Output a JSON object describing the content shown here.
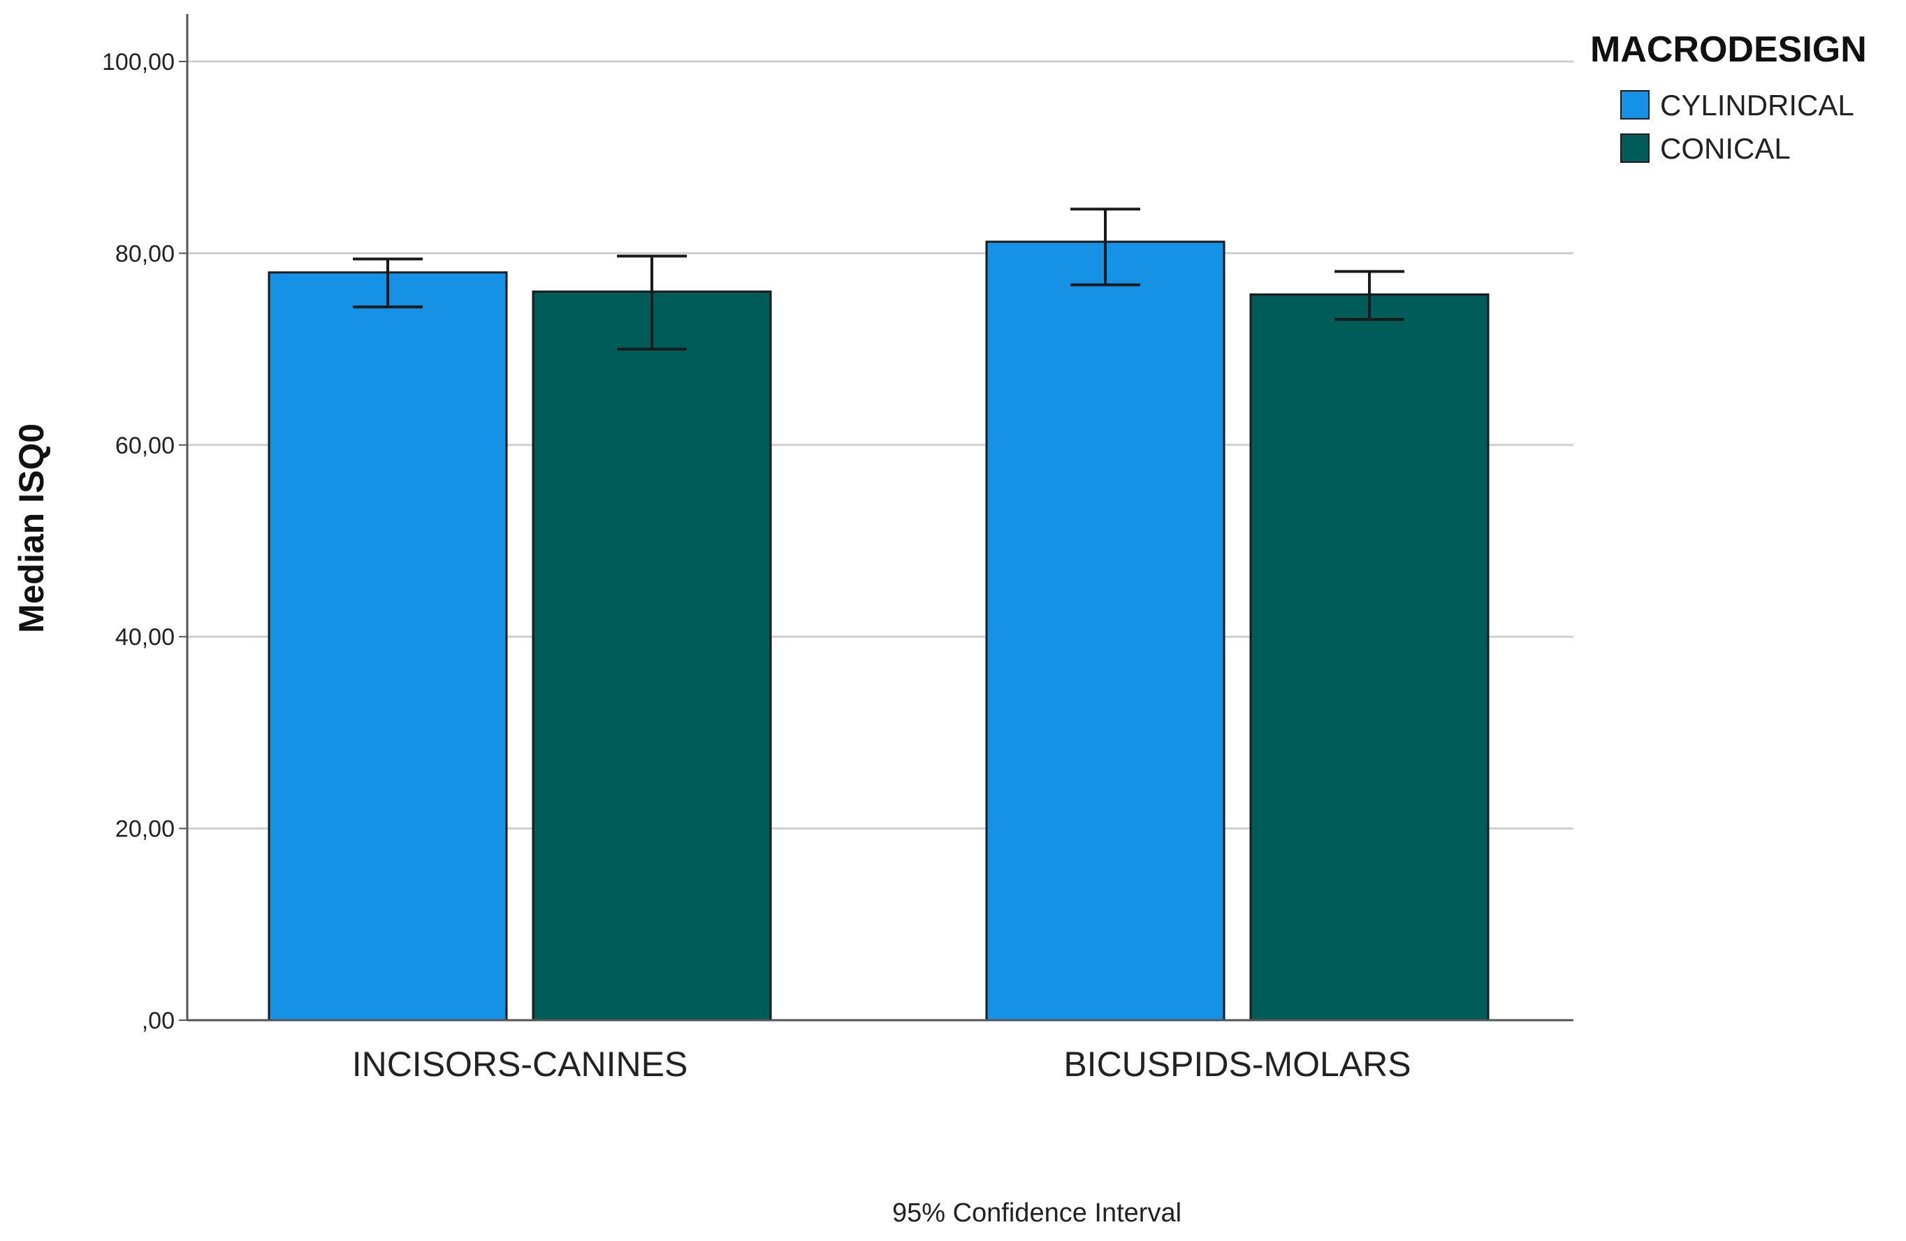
{
  "chart_data": {
    "type": "bar",
    "categories": [
      "INCISORS-CANINES",
      "BICUSPIDS-MOLARS"
    ],
    "series": [
      {
        "name": "CYLINDRICAL",
        "color": "#1591E6",
        "values": [
          78.0,
          81.2
        ],
        "ci_low": [
          74.4,
          76.7
        ],
        "ci_high": [
          79.4,
          84.6
        ]
      },
      {
        "name": "CONICAL",
        "color": "#005C58",
        "values": [
          76.0,
          75.7
        ],
        "ci_low": [
          70.0,
          73.1
        ],
        "ci_high": [
          79.7,
          78.1
        ]
      }
    ],
    "ylabel": "Median ISQ0",
    "ylim": [
      0,
      100
    ],
    "yticks": [
      0,
      20,
      40,
      60,
      80,
      100
    ],
    "ytick_labels": [
      ",00",
      "20,00",
      "40,00",
      "60,00",
      "80,00",
      "100,00"
    ],
    "grid": true,
    "legend_title": "MACRODESIGN",
    "legend_position": "top-right",
    "footnote": "95% Confidence Interval"
  }
}
